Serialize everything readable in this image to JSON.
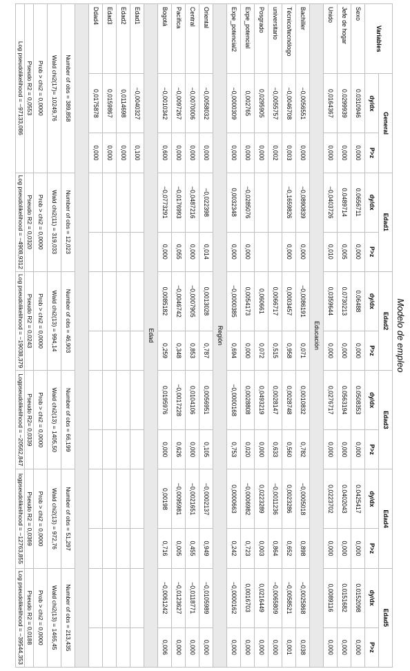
{
  "title": "Modelo de empleo",
  "headers": {
    "variables": "Variables",
    "groups": [
      "General",
      "Edad1",
      "Edad2",
      "Edad3",
      "Edad4",
      "Edad5"
    ],
    "sub": [
      "dy/dx",
      "P>z"
    ]
  },
  "colors": {
    "section_bg": "#e9e9e9",
    "border": "#bfbfbf",
    "background": "#ffffff"
  },
  "sections": [
    {
      "rows": [
        {
          "v": "Sexo",
          "cells": [
            "0.0310946",
            "0,000",
            "0.0656711",
            "0,000",
            "0.06488",
            "0,000",
            "0.0508353",
            "0,000",
            "0.0425417",
            "0,000",
            "0.0152098",
            "0,000"
          ]
        },
        {
          "v": "Jefe de hogar",
          "cells": [
            "0.0299939",
            "0,000",
            "0.0489714",
            "0,005",
            "0.0730213",
            "0,000",
            "0.0563194",
            "0,000",
            "0.0402043",
            "0,000",
            "0.0151682",
            "0,000"
          ]
        },
        {
          "v": "Unido",
          "cells": [
            "0,0164367",
            "0,000",
            "−0,0403726",
            "0,010",
            "0,0359644",
            "0,000",
            "0,0276717",
            "0,000",
            "0,0223702",
            "0,000",
            "0,0089116",
            "0,000"
          ]
        }
      ]
    },
    {
      "label": "Educación",
      "rows": [
        {
          "v": "Bachiller",
          "cells": [
            "−0,0056551",
            "0,000",
            "−0,0890839",
            "0,000",
            "−0,0086191",
            "0,071",
            "0,0010832",
            "0,782",
            "−0,0005018",
            "0,898",
            "−0,0025868",
            "0,038"
          ]
        },
        {
          "v": "Técnico/tecnólogo",
          "cells": [
            "−0,0046708",
            "0,003",
            "−0,1659826",
            "0,000",
            "0,0003457",
            "0,958",
            "0,0028748",
            "0,560",
            "0,0023286",
            "0,652",
            "−0,0058521",
            "0,001"
          ]
        },
        {
          "v": "universitario",
          "cells": [
            "−0,0055757",
            "0,002",
            "",
            "",
            "0,0066717",
            "0,515",
            "0,0028147",
            "0,633",
            "−0,0011236",
            "0,864",
            "−0,0065809",
            "0,000"
          ]
        },
        {
          "v": "Posgrado",
          "cells": [
            "0,0295905",
            "0,000",
            "",
            "",
            "0,060661",
            "0,072",
            "0,0493219",
            "0,000",
            "0,0223289",
            "0,003",
            "0,0216449",
            "0,000"
          ]
        },
        {
          "v": "Expe_potencial",
          "cells": [
            "0,002765",
            "0,000",
            "−0,0285076",
            "0,000",
            "0,0054173",
            "0,000",
            "0,0028808",
            "0,020",
            "−0,0006982",
            "0,723",
            "0,0016703",
            "0,000"
          ]
        },
        {
          "v": "Expe_potencial2",
          "cells": [
            "−0,0000309",
            "0,000",
            "0,0032348",
            "0,000",
            "−0,0000385",
            "0,694",
            "−0,0000168",
            "0,753",
            "0,0000663",
            "0,242",
            "−0,0000162",
            "0,000"
          ]
        }
      ]
    },
    {
      "label": "Región",
      "rows": [
        {
          "v": "Oriental",
          "cells": [
            "−0,0058032",
            "0,000",
            "−0,022398",
            "0,014",
            "0,0013028",
            "0,787",
            "0,0056951",
            "0,105",
            "−0,0002137",
            "0,949",
            "−0,0105989",
            "0,000"
          ]
        },
        {
          "v": "Central",
          "cells": [
            "−0,0070006",
            "0,000",
            "−0,0487216",
            "0,000",
            "−0,0007905",
            "0,853",
            "0,0104106",
            "0,000",
            "−0,0021651",
            "0,455",
            "−0,0118771",
            "0,000"
          ]
        },
        {
          "v": "Pacífica",
          "cells": [
            "−0,0097267",
            "0,000",
            "−0,0176993",
            "0,055",
            "−0,0046742",
            "0,348",
            "−0,0017228",
            "0,626",
            "−0,0095981",
            "0,005",
            "−0,0123627",
            "0,000"
          ]
        },
        {
          "v": "Bogotá",
          "cells": [
            "−0,0010342",
            "0,600",
            "−0,0773291",
            "0,000",
            "0,0085182",
            "0,259",
            "0,0195976",
            "0,000",
            "0,00198",
            "0,716",
            "−0,0061242",
            "0,006"
          ]
        }
      ]
    },
    {
      "label": "Edad",
      "rows": [
        {
          "v": "Edad1",
          "cells": [
            "−0,0040327",
            "0,100",
            "",
            "",
            "",
            "",
            "",
            "",
            "",
            "",
            "",
            ""
          ]
        },
        {
          "v": "Edad2",
          "cells": [
            "0,0114698",
            "0,000",
            "",
            "",
            "",
            "",
            "",
            "",
            "",
            "",
            "",
            ""
          ]
        },
        {
          "v": "Edad3",
          "cells": [
            "0,0159867",
            "0,000",
            "",
            "",
            "",
            "",
            "",
            "",
            "",
            "",
            "",
            ""
          ]
        },
        {
          "v": "Ddad4",
          "cells": [
            "0,0175878",
            "0,000",
            "",
            "",
            "",
            "",
            "",
            "",
            "",
            "",
            "",
            ""
          ]
        }
      ]
    }
  ],
  "summary": [
    [
      "Number of obs = 389,858",
      "Number of obs = 12,023",
      "Number of obs = 46,903",
      "Number of obs = 66,199",
      "Number of obs = 51,297",
      "Number of obs = 213,435"
    ],
    [
      "Wald chi2(17)= 10249,76",
      "Wald chi2(11) = 319,033",
      "Wald chi2(13) = 994,14",
      "Wald chi2(13) = 1405,50",
      "Wald chi2(13) = 972,76",
      "Wald chi2(13) = 1465,45"
    ],
    [
      "Prob > chi2 = 0,0000",
      "Prob > chi2 = 0,0000",
      "Prob > chi2 = 0,0000",
      "Prob > chi2 = 0,0000",
      "Prob > chi2 = 0,0000",
      "Prob > chi2 = 0,0000"
    ],
    [
      "Pseudo R2 = 0,0553",
      "Pseudo R2 = 0,0320",
      "Pseudo R2 = 0,0243",
      "Pseudo R2= 0,0339",
      "Pseudo R2 = 0,0369",
      "Pseudo R2 = 0,0188"
    ],
    [
      "Log pseudolikelihood = −97133,086",
      "Log pseudolikelihood = −4908,9312",
      "Log pseudolikelihood = −19038,379",
      "Logpseudolikelihood = −20562,847",
      "logpseudolikelihood = −12763,855",
      "Log pseudolikelihood = −39544,353"
    ]
  ]
}
